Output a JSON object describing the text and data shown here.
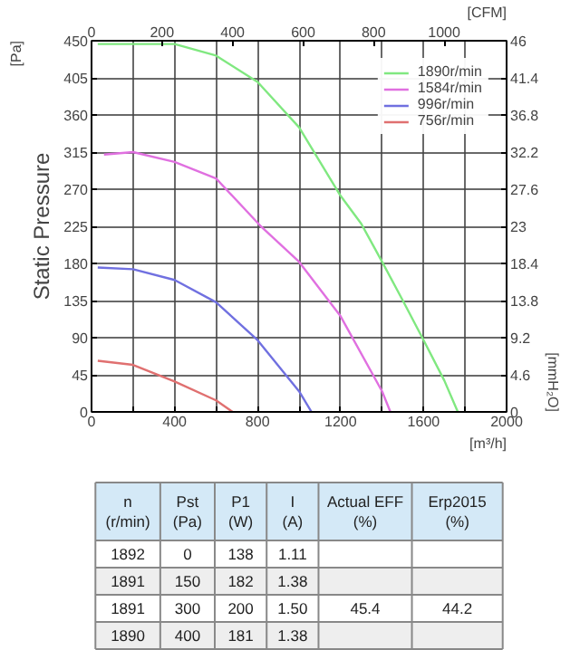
{
  "chart_data": {
    "type": "line",
    "xlabel": "[m³/h]",
    "x2label": "[CFM]",
    "ylabel": "Static Pressure",
    "y2label": "[mmH₂O]",
    "xlim": [
      0,
      2000
    ],
    "xticks": [
      0,
      {
        "value": 200,
        "label": null
      },
      400,
      {
        "value": 600,
        "label": null
      },
      800,
      {
        "value": 1000,
        "label": null
      },
      1200,
      {
        "value": 1400,
        "label": null
      },
      1600,
      {
        "value": 1800,
        "label": null
      },
      2000
    ],
    "x2lim": [
      0,
      1177
    ],
    "x2ticks": [
      0,
      200,
      400,
      600,
      800,
      1000
    ],
    "ylim": [
      0,
      450
    ],
    "yticks": [
      0,
      45,
      90,
      135,
      180,
      225,
      270,
      315,
      360,
      405,
      450
    ],
    "y2lim": [
      0,
      46
    ],
    "y2ticks": [
      0,
      4.6,
      9.2,
      13.8,
      18.4,
      23,
      27.6,
      32.2,
      36.8,
      41.4,
      46
    ],
    "grid": true,
    "legend": "top right",
    "series": [
      {
        "name": "1890r/min",
        "color": "#80e880",
        "x": [
          30,
          400,
          600,
          800,
          1000,
          1200,
          1300,
          1400,
          1500,
          1600,
          1700,
          1765
        ],
        "values": [
          446,
          446,
          432,
          400,
          345,
          262,
          228,
          182,
          135,
          87,
          38,
          0
        ]
      },
      {
        "name": "1584r/min",
        "color": "#e070e0",
        "x": [
          60,
          200,
          400,
          600,
          816,
          1000,
          1200,
          1400,
          1440
        ],
        "values": [
          312,
          315,
          303,
          283,
          225,
          182,
          116,
          25,
          0
        ]
      },
      {
        "name": "996r/min",
        "color": "#7070e0",
        "x": [
          30,
          200,
          400,
          600,
          800,
          1000,
          1060
        ],
        "values": [
          175,
          173,
          160,
          133,
          87,
          25,
          0
        ]
      },
      {
        "name": "756r/min",
        "color": "#e07070",
        "x": [
          30,
          200,
          400,
          600,
          680
        ],
        "values": [
          62,
          57,
          37,
          14,
          0
        ]
      }
    ],
    "annotations": [
      "[Pa]",
      "n\n(r/min)",
      "Pst\n(Pa)",
      "P1\n(W)",
      "I\n(A)",
      "Actual EFF\n(%)",
      "Erp2015\n(%)",
      "1892",
      "0",
      "138",
      "1.11",
      null,
      null,
      "1891",
      "150",
      "182",
      "1.38",
      null,
      null,
      "1891",
      "300",
      "200",
      "1.50",
      "45.4",
      "44.2",
      "1890",
      "400",
      "181",
      "1.38",
      null,
      null
    ]
  }
}
